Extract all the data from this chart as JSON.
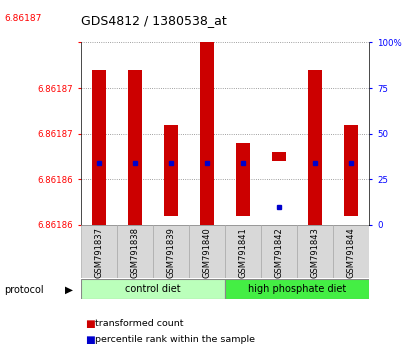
{
  "title": "GDS4812 / 1380538_at",
  "title_red": "6.86187",
  "samples": [
    "GSM791837",
    "GSM791838",
    "GSM791839",
    "GSM791840",
    "GSM791841",
    "GSM791842",
    "GSM791843",
    "GSM791844"
  ],
  "bar_bottom": [
    6.861855,
    6.861852,
    6.861856,
    6.861855,
    6.861856,
    6.861862,
    6.861853,
    6.861856
  ],
  "bar_top": [
    6.861872,
    6.861872,
    6.861866,
    6.86188,
    6.861864,
    6.861863,
    6.861872,
    6.861866
  ],
  "percentile": [
    34,
    34,
    34,
    34,
    34,
    10,
    34,
    34
  ],
  "ylim_left": [
    6.861855,
    6.861875
  ],
  "ymin": 6.861855,
  "ymax": 6.861875,
  "ytick_pcts": [
    0,
    25,
    50,
    75,
    100
  ],
  "ytick_labels_left": [
    "6.86186",
    "6.86186",
    "6.86187",
    "6.86187",
    ""
  ],
  "ylim_right": [
    0,
    100
  ],
  "groups": [
    {
      "label": "control diet",
      "indices": [
        0,
        1,
        2,
        3
      ],
      "color": "#bbffbb"
    },
    {
      "label": "high phosphate diet",
      "indices": [
        4,
        5,
        6,
        7
      ],
      "color": "#44ee44"
    }
  ],
  "bar_color": "#cc0000",
  "dot_color": "#0000cc",
  "legend_items": [
    {
      "label": "transformed count",
      "color": "#cc0000"
    },
    {
      "label": "percentile rank within the sample",
      "color": "#0000cc"
    }
  ]
}
